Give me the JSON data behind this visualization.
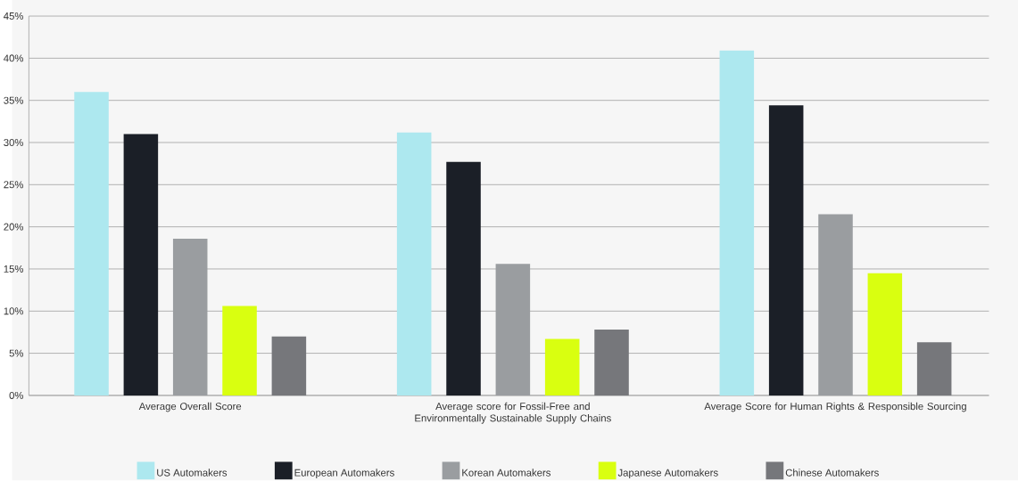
{
  "chart_data": {
    "type": "bar",
    "categories": [
      "Average Overall Score",
      "Average score for Fossil-Free and Environmentally Sustainable Supply Chains",
      "Average Score for Human Rights & Responsible Sourcing"
    ],
    "series": [
      {
        "name": "US Automakers",
        "color": "#ade8ef",
        "values": [
          36.0,
          31.2,
          40.9
        ]
      },
      {
        "name": "European Automakers",
        "color": "#1b1f27",
        "values": [
          31.0,
          27.7,
          34.4
        ]
      },
      {
        "name": "Korean Automakers",
        "color": "#9a9da0",
        "values": [
          18.6,
          15.6,
          21.5
        ]
      },
      {
        "name": "Japanese Automakers",
        "color": "#d9ff10",
        "values": [
          10.6,
          6.7,
          14.5
        ]
      },
      {
        "name": "Chinese Automakers",
        "color": "#76777b",
        "values": [
          7.0,
          7.8,
          6.3
        ]
      }
    ],
    "ylim": [
      0,
      45
    ],
    "yticks": [
      {
        "value": 0,
        "label": "0%"
      },
      {
        "value": 5,
        "label": "5%"
      },
      {
        "value": 10,
        "label": "10%"
      },
      {
        "value": 15,
        "label": "15%"
      },
      {
        "value": 20,
        "label": "20%"
      },
      {
        "value": 25,
        "label": "25%"
      },
      {
        "value": 30,
        "label": "30%"
      },
      {
        "value": 35,
        "label": "35%"
      },
      {
        "value": 40,
        "label": "40%"
      },
      {
        "value": 45,
        "label": "45%"
      }
    ],
    "grid": "y",
    "legend": "bottom"
  }
}
